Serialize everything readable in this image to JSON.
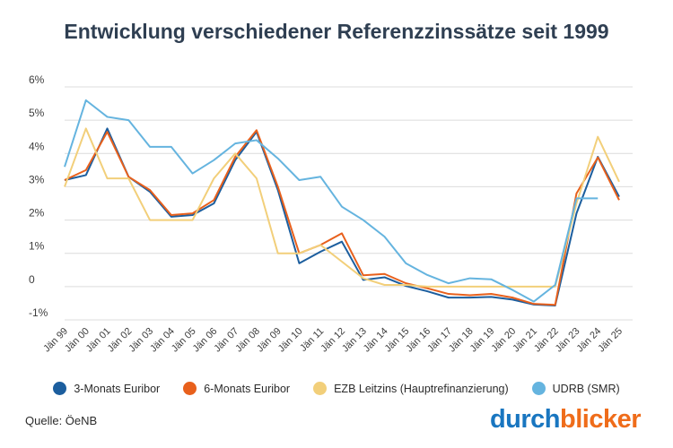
{
  "chart_data": {
    "type": "line",
    "title": "Entwicklung verschiedener Referenzzinssätze seit 1999",
    "xlabel": "",
    "ylabel": "",
    "ylim": [
      -1,
      6
    ],
    "yticks": [
      -1,
      0,
      1,
      2,
      3,
      4,
      5,
      6
    ],
    "ytick_labels": [
      "-1%",
      "0",
      "1%",
      "2%",
      "3%",
      "4%",
      "5%",
      "6%"
    ],
    "categories": [
      "Jän 99",
      "Jän 00",
      "Jän 01",
      "Jän 02",
      "Jän 03",
      "Jän 04",
      "Jän 05",
      "Jän 06",
      "Jän 07",
      "Jän 08",
      "Jän 09",
      "Jän 10",
      "Jän 11",
      "Jän 12",
      "Jän 13",
      "Jän 14",
      "Jän 15",
      "Jän 16",
      "Jän 17",
      "Jän 18",
      "Jän 19",
      "Jän 20",
      "Jän 21",
      "Jän 22",
      "Jän 23",
      "Jän 24",
      "Jän 25"
    ],
    "grid": true,
    "legend_position": "bottom",
    "series": [
      {
        "name": "3-Monats Euribor",
        "color": "#1c5e9e",
        "values": [
          3.2,
          3.35,
          4.75,
          3.3,
          2.85,
          2.1,
          2.15,
          2.5,
          3.8,
          4.65,
          2.9,
          0.7,
          1.05,
          1.35,
          0.2,
          0.28,
          0.02,
          -0.14,
          -0.33,
          -0.33,
          -0.31,
          -0.39,
          -0.54,
          -0.57,
          2.2,
          3.9,
          2.7
        ]
      },
      {
        "name": "6-Monats Euribor",
        "color": "#e8601c",
        "values": [
          3.2,
          3.5,
          4.65,
          3.3,
          2.9,
          2.15,
          2.2,
          2.6,
          3.9,
          4.7,
          3.0,
          1.0,
          1.25,
          1.6,
          0.34,
          0.38,
          0.1,
          -0.05,
          -0.22,
          -0.26,
          -0.22,
          -0.33,
          -0.52,
          -0.55,
          2.8,
          3.88,
          2.6
        ]
      },
      {
        "name": "EZB Leitzins (Hauptrefinanzierung)",
        "color": "#f2cf7a",
        "values": [
          3.0,
          4.75,
          3.25,
          3.25,
          2.0,
          2.0,
          2.0,
          3.25,
          4.0,
          3.25,
          1.0,
          1.0,
          1.25,
          0.75,
          0.25,
          0.05,
          0.05,
          0.0,
          0.0,
          0.0,
          0.0,
          0.0,
          0.0,
          0.0,
          2.5,
          4.5,
          3.15
        ]
      },
      {
        "name": "UDRB (SMR)",
        "color": "#65b4df",
        "values": [
          3.6,
          5.6,
          5.1,
          5.0,
          4.2,
          4.2,
          3.4,
          3.8,
          4.3,
          4.4,
          3.85,
          3.2,
          3.3,
          2.4,
          2.0,
          1.5,
          0.7,
          0.35,
          0.1,
          0.25,
          0.22,
          -0.1,
          -0.45,
          0.05,
          2.65,
          2.65,
          null
        ]
      }
    ]
  },
  "source_text": "Quelle: ÖeNB",
  "brand": {
    "part1": "durch",
    "part2": "blicker"
  }
}
